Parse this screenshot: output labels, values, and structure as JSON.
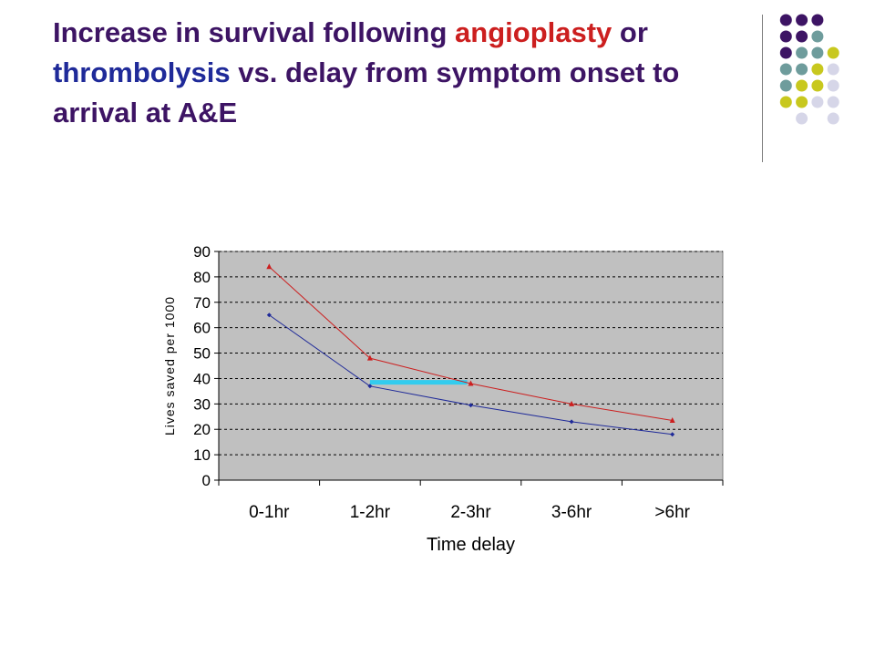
{
  "slide": {
    "title_part1": "Increase in survival following ",
    "title_highlight1": "angioplasty",
    "title_part2": " or ",
    "title_highlight2": "thrombolysis",
    "title_part3": " vs. delay from symptom onset to arrival at A&E"
  },
  "colors": {
    "title": "#3d1464",
    "angioplasty": "#cc1f1f",
    "thrombolysis": "#1f2a99",
    "plot_background": "#c0c0c0",
    "highlight_bar": "#33ccee",
    "dot_palette": [
      "#3d1464",
      "#6e9c9c",
      "#c8c81e",
      "#d6d6e8"
    ]
  },
  "chart_data": {
    "type": "line",
    "xlabel": "Time delay",
    "ylabel": "Lives saved per 1000",
    "categories": [
      "0-1hr",
      "1-2hr",
      "2-3hr",
      "3-6hr",
      ">6hr"
    ],
    "ylim": [
      0,
      90
    ],
    "yticks": [
      0,
      10,
      20,
      30,
      40,
      50,
      60,
      70,
      80,
      90
    ],
    "grid": "horizontal dashed",
    "legend": "none",
    "series": [
      {
        "color": "#cc1f1f",
        "marker": "triangle",
        "values": [
          84,
          48,
          38,
          30,
          23.5
        ]
      },
      {
        "color": "#1f2a99",
        "marker": "diamond",
        "values": [
          65,
          37,
          29.5,
          23,
          18
        ]
      }
    ],
    "annotation": {
      "type": "horizontal_bar",
      "from_x": 1,
      "to_x": 2,
      "y": 38.5,
      "color": "#33ccee"
    }
  }
}
